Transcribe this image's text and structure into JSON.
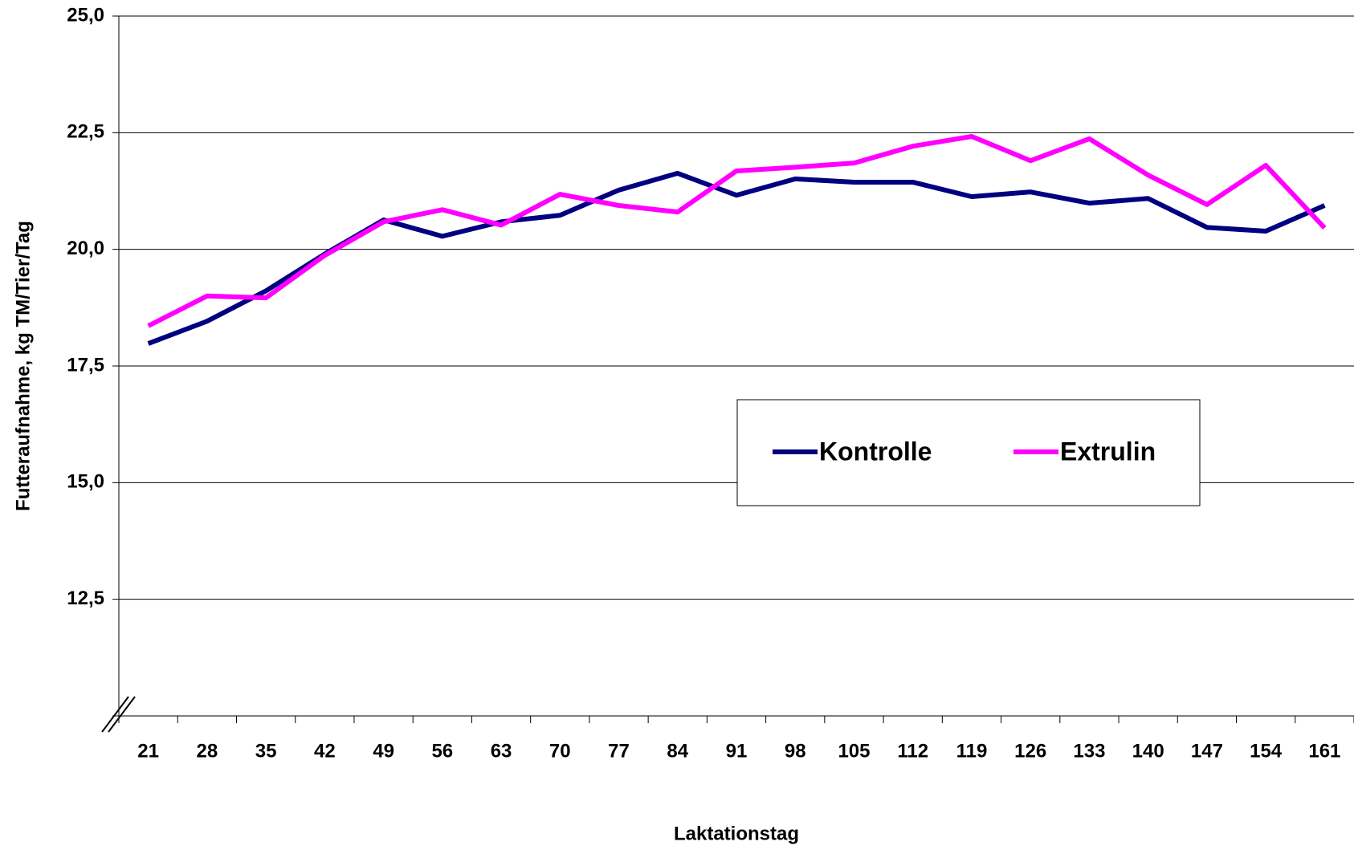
{
  "chart_data": {
    "type": "line",
    "x_label": "Laktationstag",
    "y_label": "Futteraufnahme, kg TM/Tier/Tag",
    "categories": [
      "21",
      "28",
      "35",
      "42",
      "49",
      "56",
      "63",
      "70",
      "77",
      "84",
      "91",
      "98",
      "105",
      "112",
      "119",
      "126",
      "133",
      "140",
      "147",
      "154",
      "161"
    ],
    "series": [
      {
        "name": "Kontrolle",
        "color": "#000080",
        "values": [
          17.98,
          18.46,
          19.11,
          19.9,
          20.63,
          20.28,
          20.59,
          20.73,
          21.27,
          21.63,
          21.16,
          21.51,
          21.44,
          21.44,
          21.13,
          21.23,
          20.99,
          21.09,
          20.47,
          20.39,
          20.94
        ]
      },
      {
        "name": "Extrulin",
        "color": "#ff00ff",
        "values": [
          18.36,
          19.0,
          18.96,
          19.87,
          20.59,
          20.85,
          20.52,
          21.18,
          20.94,
          20.8,
          21.68,
          21.76,
          21.85,
          22.21,
          22.42,
          21.9,
          22.37,
          21.59,
          20.96,
          21.8,
          20.46
        ]
      }
    ],
    "ylim": [
      10,
      25
    ],
    "yticks": [
      {
        "value": 12.5,
        "label": "12,5"
      },
      {
        "value": 15,
        "label": "15,0"
      },
      {
        "value": 17.5,
        "label": "17,5"
      },
      {
        "value": 20,
        "label": "20,0"
      },
      {
        "value": 22.5,
        "label": "22,5"
      },
      {
        "value": 25,
        "label": "25,0"
      }
    ],
    "grid": true
  }
}
